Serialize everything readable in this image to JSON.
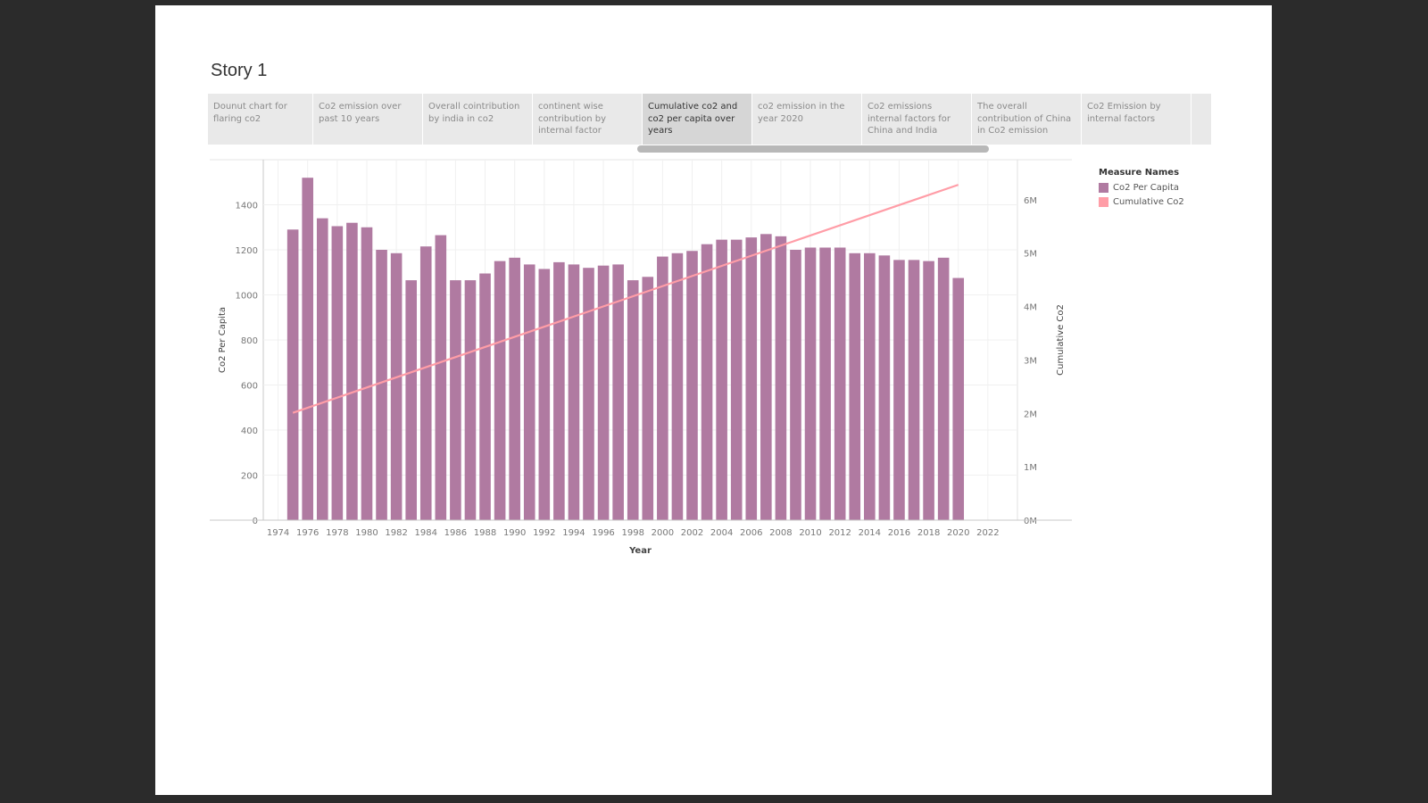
{
  "story": {
    "title": "Story 1",
    "tabs": [
      {
        "label": "Dounut chart for flaring co2",
        "active": false
      },
      {
        "label": "Co2 emission over past 10 years",
        "active": false
      },
      {
        "label": "Overall cointribution by india in co2",
        "active": false
      },
      {
        "label": "continent wise contribution by internal factor",
        "active": false
      },
      {
        "label": "Cumulative co2 and co2 per capita over years",
        "active": true
      },
      {
        "label": "co2 emission in the year 2020",
        "active": false
      },
      {
        "label": "Co2 emissions internal factors for China and India",
        "active": false
      },
      {
        "label": "The overall contribution of China in Co2 emission",
        "active": false
      },
      {
        "label": "Co2 Emission by internal factors",
        "active": false
      }
    ]
  },
  "legend": {
    "title": "Measure Names",
    "items": [
      {
        "label": "Co2 Per Capita",
        "color": "#b07aa1"
      },
      {
        "label": "Cumulative Co2",
        "color": "#ff9da7"
      }
    ]
  },
  "chart_data": {
    "type": "bar",
    "xlabel": "Year",
    "ylabel": "Co2 Per Capita",
    "y2label": "Cumulative Co2",
    "xlim": [
      1973,
      2024
    ],
    "xticks": [
      1974,
      1976,
      1978,
      1980,
      1982,
      1984,
      1986,
      1988,
      1990,
      1992,
      1994,
      1996,
      1998,
      2000,
      2002,
      2004,
      2006,
      2008,
      2010,
      2012,
      2014,
      2016,
      2018,
      2020,
      2022
    ],
    "ylim": [
      0,
      1600
    ],
    "yticks": [
      0,
      200,
      400,
      600,
      800,
      1000,
      1200,
      1400
    ],
    "y2lim": [
      0,
      6750000
    ],
    "y2ticks": [
      {
        "value": 0,
        "label": "0M"
      },
      {
        "value": 1000000,
        "label": "1M"
      },
      {
        "value": 2000000,
        "label": "2M"
      },
      {
        "value": 3000000,
        "label": "3M"
      },
      {
        "value": 4000000,
        "label": "4M"
      },
      {
        "value": 5000000,
        "label": "5M"
      },
      {
        "value": 6000000,
        "label": "6M"
      }
    ],
    "grid": true,
    "series": [
      {
        "name": "Co2 Per Capita",
        "kind": "bar",
        "axis": "left",
        "color": "#b07aa1",
        "x": [
          1975,
          1976,
          1977,
          1978,
          1979,
          1980,
          1981,
          1982,
          1983,
          1984,
          1985,
          1986,
          1987,
          1988,
          1989,
          1990,
          1991,
          1992,
          1993,
          1994,
          1995,
          1996,
          1997,
          1998,
          1999,
          2000,
          2001,
          2002,
          2003,
          2004,
          2005,
          2006,
          2007,
          2008,
          2009,
          2010,
          2011,
          2012,
          2013,
          2014,
          2015,
          2016,
          2017,
          2018,
          2019,
          2020
        ],
        "values": [
          1290,
          1520,
          1340,
          1305,
          1320,
          1300,
          1200,
          1185,
          1065,
          1215,
          1265,
          1065,
          1065,
          1095,
          1150,
          1165,
          1135,
          1115,
          1145,
          1135,
          1120,
          1130,
          1135,
          1065,
          1080,
          1170,
          1185,
          1195,
          1225,
          1245,
          1245,
          1255,
          1270,
          1260,
          1200,
          1210,
          1210,
          1210,
          1185,
          1185,
          1175,
          1155,
          1155,
          1150,
          1165,
          1075
        ]
      },
      {
        "name": "Cumulative Co2",
        "kind": "line",
        "axis": "right",
        "color": "#ff9da7",
        "x": [
          1975,
          2020
        ],
        "values": [
          2010000,
          6280000
        ]
      }
    ]
  }
}
